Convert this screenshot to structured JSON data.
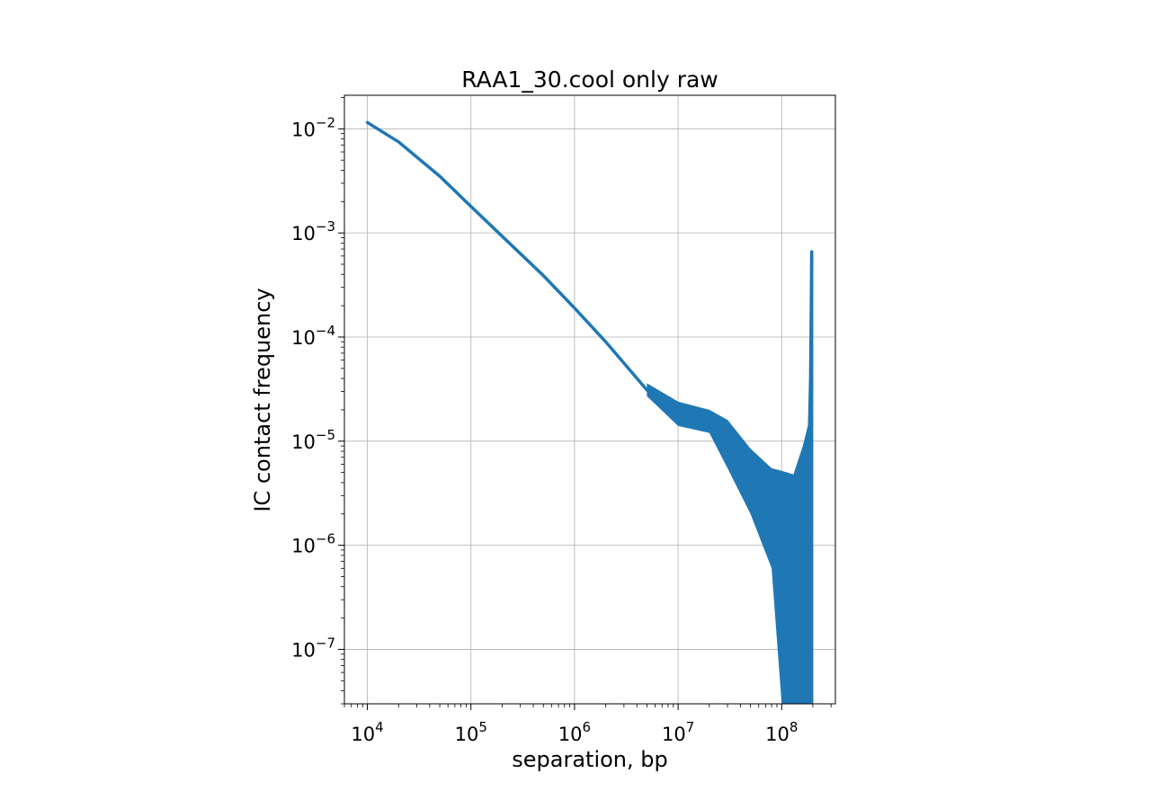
{
  "chart_data": {
    "type": "line",
    "title": "RAA1_30.cool only raw",
    "xlabel": "separation, bp",
    "ylabel": "IC contact frequency",
    "xscale": "log",
    "yscale": "log",
    "xlim": [
      6000,
      330000000
    ],
    "ylim": [
      3e-08,
      0.021
    ],
    "grid": true,
    "x_ticks": [
      {
        "base": "10",
        "exp": "4"
      },
      {
        "base": "10",
        "exp": "5"
      },
      {
        "base": "10",
        "exp": "6"
      },
      {
        "base": "10",
        "exp": "7"
      },
      {
        "base": "10",
        "exp": "8"
      }
    ],
    "y_ticks": [
      {
        "base": "10",
        "exp": "−2"
      },
      {
        "base": "10",
        "exp": "−3"
      },
      {
        "base": "10",
        "exp": "−4"
      },
      {
        "base": "10",
        "exp": "−5"
      },
      {
        "base": "10",
        "exp": "−6"
      },
      {
        "base": "10",
        "exp": "−7"
      }
    ],
    "series": [
      {
        "color": "#1f77b4",
        "x": [
          10000,
          20000,
          50000,
          100000,
          200000,
          500000,
          1000000,
          2000000,
          5000000,
          10000000,
          20000000,
          30000000,
          50000000,
          80000000,
          100000000,
          150000000,
          180000000,
          190000000,
          195000000
        ],
        "y": [
          0.0115,
          0.0075,
          0.0035,
          0.0018,
          0.00093,
          0.00039,
          0.00019,
          9e-05,
          3.1e-05,
          1.8e-05,
          1.5e-05,
          1e-05,
          4.5e-06,
          2e-06,
          1e-06,
          8e-07,
          4e-06,
          4e-05,
          0.00066
        ],
        "noise_band": {
          "x": [
            5000000,
            10000000,
            20000000,
            30000000,
            50000000,
            80000000,
            100000000,
            130000000,
            160000000,
            190000000
          ],
          "upper": [
            3.6e-05,
            2.4e-05,
            2e-05,
            1.6e-05,
            8.5e-06,
            5.5e-06,
            5.2e-06,
            4.8e-06,
            9e-06,
            1.8e-05
          ],
          "lower": [
            2.7e-05,
            1.4e-05,
            1.2e-05,
            5.5e-06,
            2e-06,
            6e-07,
            3e-08,
            3e-08,
            3e-08,
            3e-08
          ]
        }
      }
    ]
  }
}
